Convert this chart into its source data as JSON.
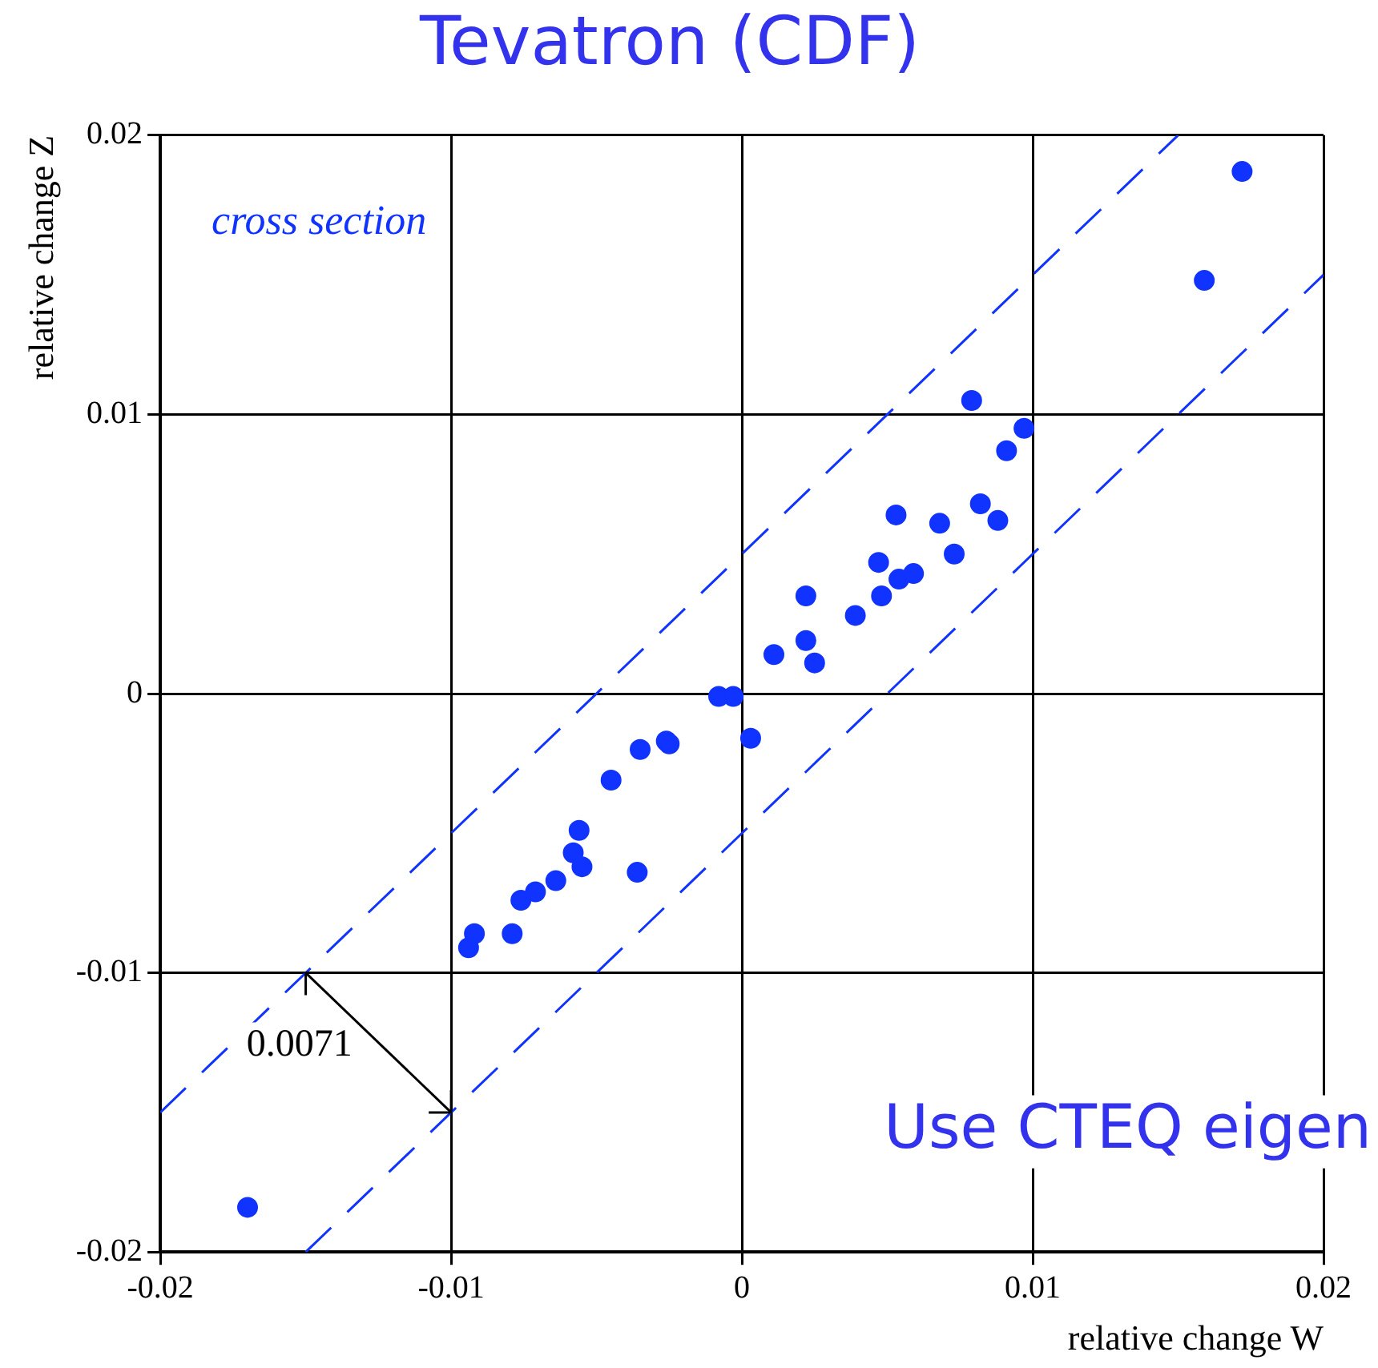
{
  "chart_data": {
    "type": "scatter",
    "title": "Tevatron (CDF)",
    "xlabel": "relative change W",
    "ylabel": "relative change Z",
    "xlim": [
      -0.02,
      0.02
    ],
    "xticks": [
      -0.02,
      -0.01,
      0,
      0.01,
      0.02
    ],
    "ylim": [
      -0.02,
      0.02
    ],
    "yticks": [
      -0.02,
      -0.01,
      0,
      0.01,
      0.02
    ],
    "grid": true,
    "marker": "circle",
    "annotations": [
      "cross section",
      {
        "text": "0.0071",
        "x": -0.015,
        "y": -0.01
      },
      "Use CTEQ eigen"
    ],
    "series": [
      {
        "color": "#1133ff",
        "x": [
          0.0172,
          0.0159,
          0.0097,
          0.0091,
          0.0079,
          0.0053,
          0.0068,
          0.0082,
          0.0088,
          0.0047,
          0.0073,
          0.0054,
          0.0059,
          0.0048,
          0.0039,
          0.0022,
          0.0022,
          0.0025,
          0.0011,
          -0.0008,
          -0.0003,
          0.0003,
          -0.0035,
          -0.0026,
          -0.0025,
          -0.0045,
          -0.0056,
          -0.0058,
          -0.0055,
          -0.0036,
          -0.0064,
          -0.0071,
          -0.0076,
          -0.0079,
          -0.0092,
          -0.0094,
          -0.017
        ],
        "values": [
          0.0187,
          0.0148,
          0.0095,
          0.0087,
          0.0105,
          0.0064,
          0.0061,
          0.0068,
          0.0062,
          0.0047,
          0.005,
          0.0041,
          0.0043,
          0.0035,
          0.0028,
          0.0035,
          0.0019,
          0.0011,
          0.0014,
          -0.0001,
          -0.0001,
          -0.0016,
          -0.002,
          -0.0017,
          -0.0018,
          -0.0031,
          -0.0049,
          -0.0057,
          -0.0062,
          -0.0064,
          -0.0067,
          -0.0071,
          -0.0074,
          -0.0086,
          -0.0086,
          -0.0091,
          -0.0184
        ]
      },
      {
        "type": "line",
        "color": "#1133ff",
        "line_style": "dashed",
        "marker": "none",
        "x": [
          -0.02,
          0.015
        ],
        "values": [
          -0.015,
          0.02
        ]
      },
      {
        "type": "line",
        "color": "#1133ff",
        "line_style": "dashed",
        "marker": "none",
        "x": [
          -0.015,
          0.02
        ],
        "values": [
          -0.02,
          0.015
        ]
      }
    ]
  }
}
